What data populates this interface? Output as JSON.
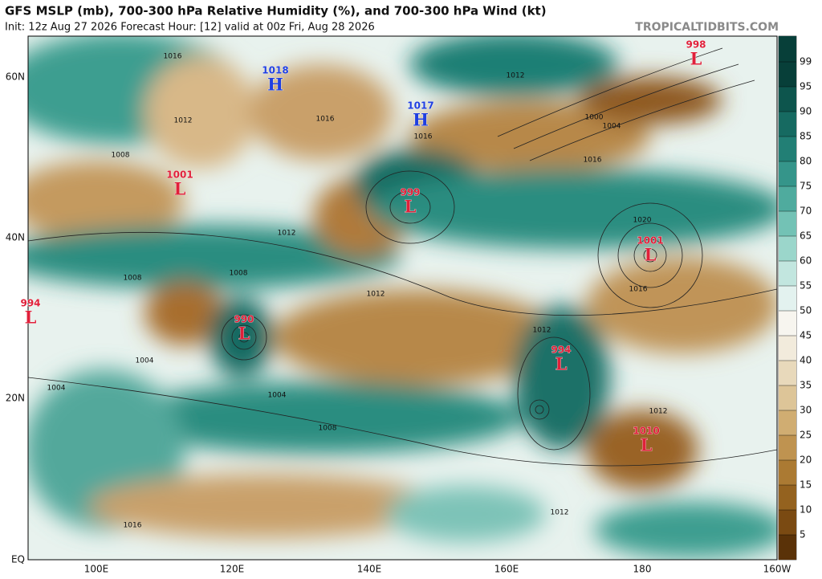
{
  "header": {
    "title": "GFS MSLP (mb), 700-300 hPa Relative Humidity (%), and 700-300 hPa Wind (kt)",
    "subtitle": "Init: 12z Aug 27 2026   Forecast Hour: [12]   valid at 00z Fri, Aug 28 2026",
    "site": "TROPICALTIDBITS.COM"
  },
  "map": {
    "lat_labels": [
      "60N",
      "40N",
      "20N",
      "EQ"
    ],
    "lon_labels": [
      "100E",
      "120E",
      "140E",
      "160E",
      "180",
      "160W"
    ],
    "centers": [
      {
        "letter": "L",
        "pressure": 994,
        "color": "#e0203a"
      },
      {
        "letter": "L",
        "pressure": 1001,
        "color": "#e0203a"
      },
      {
        "letter": "H",
        "pressure": 1018,
        "color": "#1f3fe0"
      },
      {
        "letter": "H",
        "pressure": 1017,
        "color": "#1f3fe0"
      },
      {
        "letter": "L",
        "pressure": 999,
        "color": "#e0203a"
      },
      {
        "letter": "L",
        "pressure": 990,
        "color": "#e0203a"
      },
      {
        "letter": "L",
        "pressure": 1001,
        "color": "#e0203a"
      },
      {
        "letter": "L",
        "pressure": 994,
        "color": "#e0203a"
      },
      {
        "letter": "L",
        "pressure": 1010,
        "color": "#e0203a"
      },
      {
        "letter": "L",
        "pressure": 998,
        "color": "#e0203a"
      }
    ],
    "isobar_labels": [
      1016,
      1012,
      1016,
      1008,
      1012,
      1012,
      1008,
      1004,
      1004,
      1008,
      1012,
      1016,
      1016,
      1012,
      1020,
      1016,
      1012,
      1012,
      1000,
      1004,
      1008,
      1004,
      1012,
      1016
    ]
  },
  "colorbar": {
    "ticks": [
      5,
      10,
      15,
      20,
      25,
      30,
      35,
      40,
      45,
      50,
      55,
      60,
      65,
      70,
      75,
      80,
      85,
      90,
      95,
      99
    ],
    "colors": [
      "#5a3208",
      "#7a4a12",
      "#94621f",
      "#ab7a33",
      "#bf9350",
      "#d0ad72",
      "#ddc598",
      "#e8d9bb",
      "#f2ebdc",
      "#f7f5ef",
      "#e3f2ef",
      "#c2e6df",
      "#9bd6cb",
      "#73c2b5",
      "#4fab9e",
      "#35958a",
      "#227f75",
      "#166a61",
      "#0d554d",
      "#073f39"
    ]
  }
}
